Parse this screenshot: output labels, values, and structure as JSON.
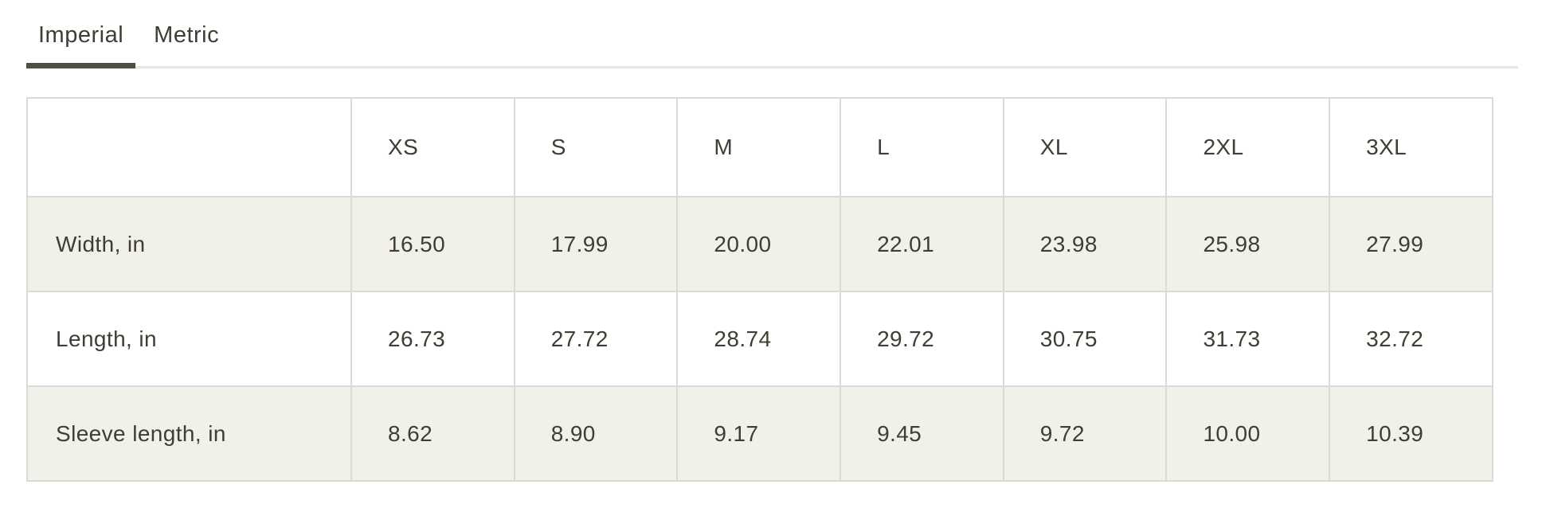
{
  "tabs": {
    "imperial": {
      "label": "Imperial",
      "active": true
    },
    "metric": {
      "label": "Metric",
      "active": false
    }
  },
  "size_table": {
    "columns": [
      "",
      "XS",
      "S",
      "M",
      "L",
      "XL",
      "2XL",
      "3XL"
    ],
    "rows": [
      {
        "label": "Width, in",
        "values": [
          "16.50",
          "17.99",
          "20.00",
          "22.01",
          "23.98",
          "25.98",
          "27.99"
        ]
      },
      {
        "label": "Length, in",
        "values": [
          "26.73",
          "27.72",
          "28.74",
          "29.72",
          "30.75",
          "31.73",
          "32.72"
        ]
      },
      {
        "label": "Sleeve length, in",
        "values": [
          "8.62",
          "8.90",
          "9.17",
          "9.45",
          "9.72",
          "10.00",
          "10.39"
        ]
      }
    ]
  },
  "colors": {
    "text": "#3f3e34",
    "active_tab_underline": "#514f44",
    "tab_divider": "#e7e6e2",
    "table_border": "#dbdad5",
    "striped_row_bg": "#f1f1ea"
  }
}
